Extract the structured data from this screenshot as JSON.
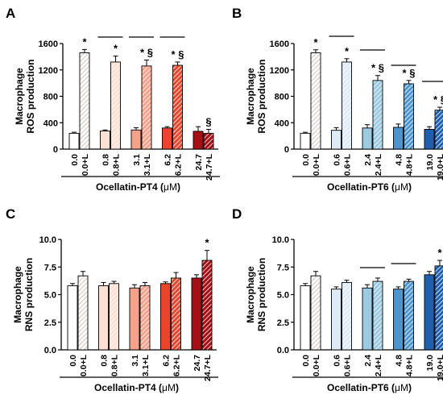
{
  "chart_data": [
    {
      "panel": "A",
      "type": "bar",
      "ylabel_lines": [
        "Macrophage",
        "ROS production"
      ],
      "xlabel": "Ocellatin-PT4 (",
      "xlabel_unit": "μM",
      "xlabel_close": ")",
      "ylim": [
        0,
        1600
      ],
      "yticks": [
        "0",
        "400",
        "800",
        "1200",
        "1600"
      ],
      "categories": [
        "0.0",
        "0.0+L",
        "0.8",
        "0.8+L",
        "3.1",
        "3.1+L",
        "6.2",
        "6.2+L",
        "24.7",
        "24.7+L"
      ],
      "values": [
        240,
        1460,
        275,
        1320,
        290,
        1260,
        320,
        1270,
        270,
        240
      ],
      "errors": [
        15,
        50,
        15,
        90,
        35,
        90,
        20,
        50,
        70,
        60
      ],
      "colors": [
        "#ffffff",
        "#ffffff",
        "#fde0d4",
        "#fde0d4",
        "#f4a28c",
        "#f4a28c",
        "#e8452c",
        "#e8452c",
        "#a50f15",
        "#a50f15"
      ],
      "hatched": [
        false,
        true,
        false,
        true,
        false,
        true,
        false,
        true,
        false,
        true
      ],
      "hatch_colors": [
        "#ffffff",
        "#f2d9cc",
        "#ffffff",
        "#f29a80",
        "#ffffff",
        "#ef7f62",
        "#ffffff",
        "#c81d16",
        "#ffffff",
        "#c2191b"
      ],
      "annotations": [
        "",
        "*",
        "",
        "*",
        "",
        "* §",
        "",
        "* §",
        "",
        "§"
      ],
      "brackets": [
        [
          2,
          3
        ],
        [
          4,
          5
        ],
        [
          6,
          7
        ]
      ]
    },
    {
      "panel": "B",
      "type": "bar",
      "ylabel_lines": [
        "Macrophage",
        "ROS production"
      ],
      "xlabel": "Ocellatin-PT6 (",
      "xlabel_unit": "μM",
      "xlabel_close": ")",
      "ylim": [
        0,
        1600
      ],
      "yticks": [
        "0",
        "400",
        "800",
        "1200",
        "1600"
      ],
      "categories": [
        "0.0",
        "0.0+L",
        "0.6",
        "0.6+L",
        "2.4",
        "2.4+L",
        "4.8",
        "4.8+L",
        "19.0",
        "19.0+L"
      ],
      "values": [
        240,
        1460,
        285,
        1320,
        320,
        1040,
        330,
        990,
        300,
        590
      ],
      "errors": [
        15,
        45,
        40,
        50,
        50,
        75,
        50,
        50,
        40,
        45
      ],
      "colors": [
        "#ffffff",
        "#ffffff",
        "#deebf7",
        "#deebf7",
        "#9ecae1",
        "#9ecae1",
        "#4d95cf",
        "#4d95cf",
        "#1f5fae",
        "#1f5fae"
      ],
      "hatched": [
        false,
        true,
        false,
        true,
        false,
        true,
        false,
        true,
        false,
        true
      ],
      "hatch_colors": [
        "#ffffff",
        "#c6dbef",
        "#ffffff",
        "#9ecae1",
        "#ffffff",
        "#4292c6",
        "#ffffff",
        "#2f7fc1",
        "#ffffff",
        "#1f5fae"
      ],
      "annotations": [
        "",
        "*",
        "",
        "*",
        "",
        "* §",
        "",
        "* §",
        "",
        "* §"
      ],
      "brackets": [
        [
          2,
          3
        ],
        [
          4,
          5
        ],
        [
          6,
          7
        ],
        [
          8,
          9
        ]
      ]
    },
    {
      "panel": "C",
      "type": "bar",
      "ylabel_lines": [
        "Macrophage",
        "RNS production"
      ],
      "xlabel": "Ocellatin-PT4 (",
      "xlabel_unit": "μM",
      "xlabel_close": ")",
      "ylim": [
        0,
        10
      ],
      "yticks": [
        "0.0",
        "2.5",
        "5.0",
        "7.5",
        "10.0"
      ],
      "categories": [
        "0.0",
        "0.0+L",
        "0.8",
        "0.8+L",
        "3.1",
        "3.1+L",
        "6.2",
        "6.2+L",
        "24.7",
        "24.7+L"
      ],
      "values": [
        5.8,
        6.7,
        5.8,
        6.0,
        5.6,
        5.8,
        6.0,
        6.5,
        6.5,
        8.1
      ],
      "errors": [
        0.2,
        0.4,
        0.3,
        0.2,
        0.3,
        0.3,
        0.15,
        0.5,
        0.3,
        0.9
      ],
      "colors": [
        "#ffffff",
        "#ffffff",
        "#fde0d4",
        "#fde0d4",
        "#f4a28c",
        "#f4a28c",
        "#e8452c",
        "#e8452c",
        "#a50f15",
        "#a50f15"
      ],
      "hatched": [
        false,
        true,
        false,
        true,
        false,
        true,
        false,
        true,
        false,
        true
      ],
      "hatch_colors": [
        "#ffffff",
        "#f2d9cc",
        "#ffffff",
        "#f29a80",
        "#ffffff",
        "#ef7f62",
        "#ffffff",
        "#c81d16",
        "#ffffff",
        "#c2191b"
      ],
      "annotations": [
        "",
        "",
        "",
        "",
        "",
        "",
        "",
        "",
        "",
        "*"
      ],
      "brackets": []
    },
    {
      "panel": "D",
      "type": "bar",
      "ylabel_lines": [
        "Macrophage",
        "RNS production"
      ],
      "xlabel": "Ocellatin-PT6 (",
      "xlabel_unit": "μM",
      "xlabel_close": ")",
      "ylim": [
        0,
        10
      ],
      "yticks": [
        "0.0",
        "2.5",
        "5.0",
        "7.5",
        "10.0"
      ],
      "categories": [
        "0.0",
        "0.0+L",
        "0.6",
        "0.6+L",
        "2.4",
        "2.4+L",
        "4.8",
        "4.8+L",
        "19.0",
        "19.0+L"
      ],
      "values": [
        5.8,
        6.7,
        5.5,
        6.1,
        5.6,
        6.2,
        5.5,
        6.2,
        6.8,
        7.6
      ],
      "errors": [
        0.2,
        0.4,
        0.2,
        0.2,
        0.3,
        0.3,
        0.2,
        0.2,
        0.3,
        0.5
      ],
      "colors": [
        "#ffffff",
        "#ffffff",
        "#deebf7",
        "#deebf7",
        "#9ecae1",
        "#9ecae1",
        "#4d95cf",
        "#4d95cf",
        "#1f5fae",
        "#1f5fae"
      ],
      "hatched": [
        false,
        true,
        false,
        true,
        false,
        true,
        false,
        true,
        false,
        true
      ],
      "hatch_colors": [
        "#ffffff",
        "#c6dbef",
        "#ffffff",
        "#9ecae1",
        "#ffffff",
        "#4292c6",
        "#ffffff",
        "#2f7fc1",
        "#ffffff",
        "#1f5fae"
      ],
      "annotations": [
        "",
        "",
        "",
        "",
        "",
        "",
        "",
        "",
        "",
        "*"
      ],
      "brackets": [
        [
          4,
          5
        ],
        [
          6,
          7
        ]
      ]
    }
  ]
}
